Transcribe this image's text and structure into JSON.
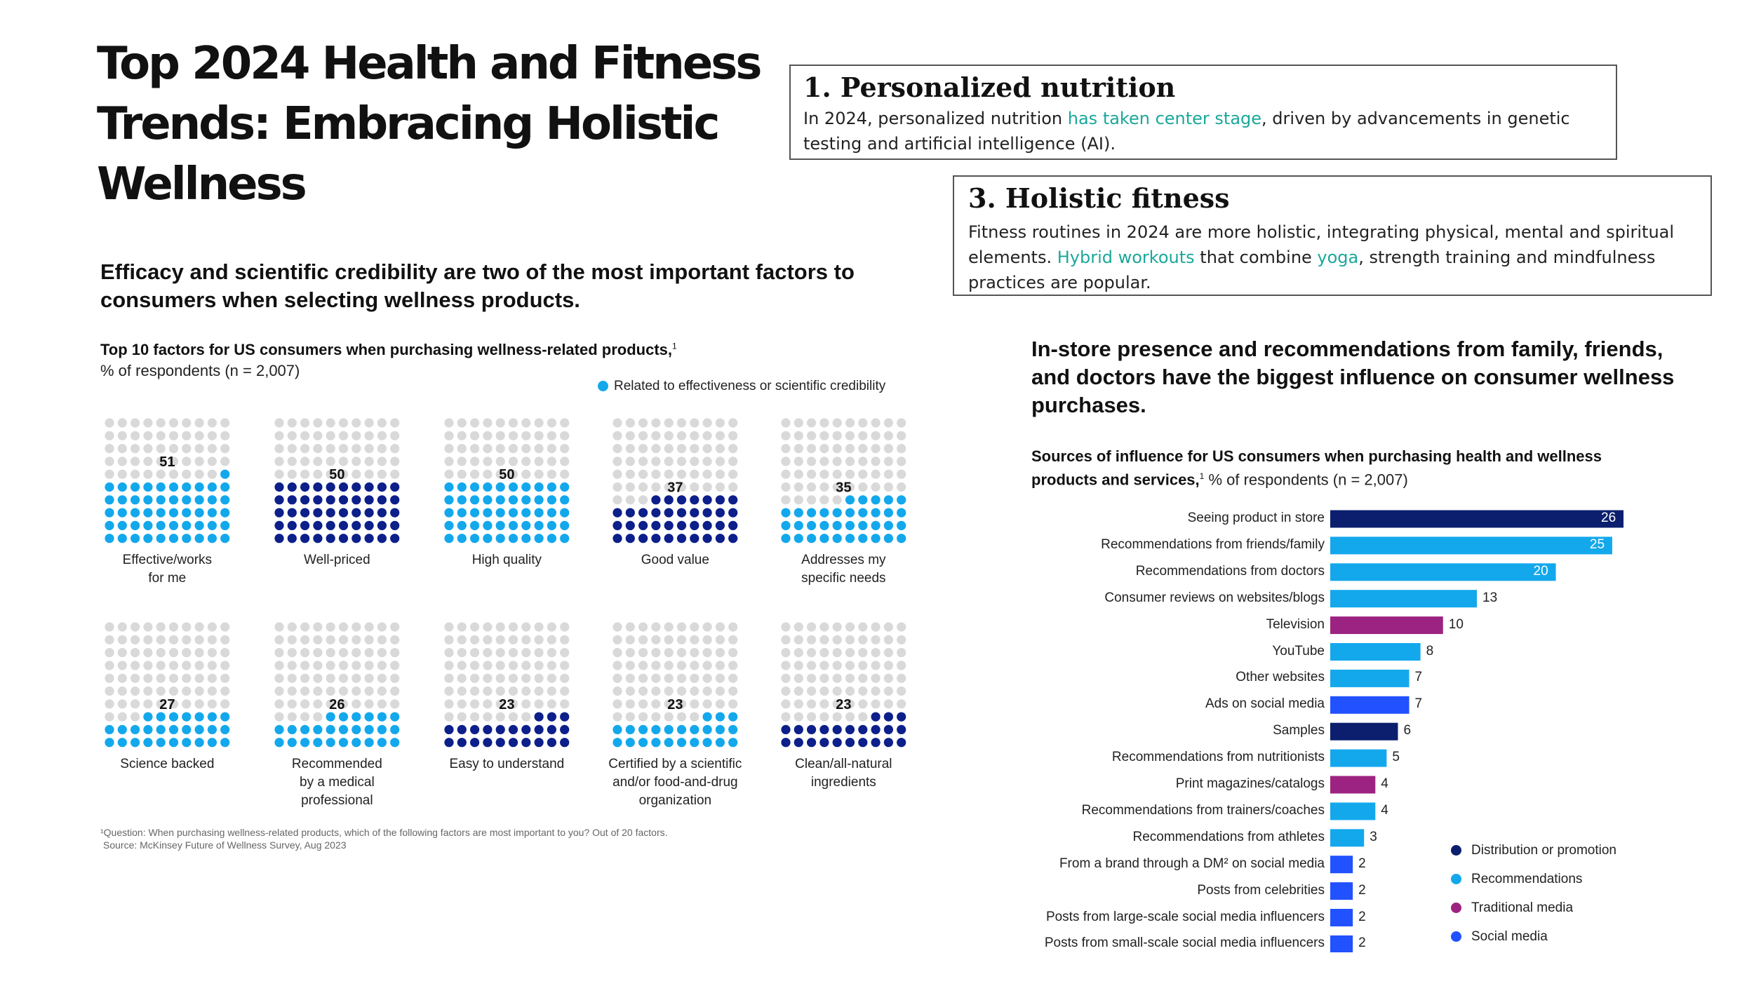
{
  "title": "Top 2024 Health and Fitness Trends: Embracing Holistic Wellness",
  "callout1": {
    "heading": "1. Personalized nutrition",
    "text_before": "In 2024, personalized nutrition ",
    "link": "has taken center stage",
    "text_after": ", driven by advancements in genetic testing and artificial intelligence (AI)."
  },
  "callout3": {
    "heading": "3. Holistic fitness",
    "text1": "Fitness routines in 2024 are more holistic, integrating physical, mental and spiritual elements. ",
    "link1": "Hybrid workouts",
    "text2": " that combine ",
    "link2": "yoga",
    "text3": ", strength training and mindfulness practices are popular."
  },
  "left": {
    "headline": "Efficacy and scientific credibility are two of the most important factors to consumers when selecting wellness products.",
    "subtitle_bold": "Top 10 factors for US consumers when purchasing wellness-related products,",
    "subtitle_sup": "1",
    "subtitle_rest": "% of respondents (n = 2,007)",
    "legend": "Related to effectiveness or scientific credibility",
    "footnote1": "¹Question: When purchasing wellness-related products, which of the following factors are most important to you? Out of 20 factors.",
    "footnote2": "Source: McKinsey Future of Wellness Survey, Aug 2023"
  },
  "right": {
    "headline": "In-store presence and recommendations from family, friends, and doctors have the biggest influence on consumer wellness purchases.",
    "subtitle_bold": "Sources of influence for US consumers when purchasing health and wellness products and services,",
    "subtitle_sup": "1",
    "subtitle_rest": " % of respondents (n = 2,007)",
    "legend": [
      "Distribution or promotion",
      "Recommendations",
      "Traditional media",
      "Social media"
    ]
  },
  "colors": {
    "light_blue": "#13a8ec",
    "navy": "#0c1f8a",
    "dark_navy": "#0b1f6e",
    "magenta": "#9c2381",
    "bright_blue": "#2251ff",
    "grey_dot": "#d9d9d9"
  },
  "chart_data": [
    {
      "type": "waffle",
      "title": "Top 10 factors for US consumers when purchasing wellness-related products",
      "unit": "% of respondents",
      "grid": "10x10",
      "categories": [
        "Effective/works for me",
        "Well-priced",
        "High quality",
        "Good value",
        "Addresses my specific needs",
        "Science backed",
        "Recommended by a medical professional",
        "Easy to understand",
        "Certified by a scientific and/or food-and-drug organization",
        "Clean/all-natural ingredients"
      ],
      "labels": [
        [
          "Effective/works",
          "for me"
        ],
        [
          "Well-priced"
        ],
        [
          "High quality"
        ],
        [
          "Good value"
        ],
        [
          "Addresses my",
          "specific needs"
        ],
        [
          "Science backed"
        ],
        [
          "Recommended",
          "by a medical",
          "professional"
        ],
        [
          "Easy to understand"
        ],
        [
          "Certified by a scientific",
          "and/or food-and-drug",
          "organization"
        ],
        [
          "Clean/all-natural",
          "ingredients"
        ]
      ],
      "values": [
        51,
        50,
        50,
        37,
        35,
        27,
        26,
        23,
        23,
        23
      ],
      "related_to_effectiveness": [
        true,
        false,
        true,
        false,
        true,
        true,
        true,
        false,
        true,
        false
      ]
    },
    {
      "type": "bar",
      "orientation": "horizontal",
      "title": "Sources of influence for US consumers when purchasing health and wellness products and services",
      "unit": "% of respondents",
      "categories": [
        "Seeing product in store",
        "Recommendations from friends/family",
        "Recommendations from doctors",
        "Consumer reviews on websites/blogs",
        "Television",
        "YouTube",
        "Other websites",
        "Ads on social media",
        "Samples",
        "Recommendations from nutritionists",
        "Print magazines/catalogs",
        "Recommendations from trainers/coaches",
        "Recommendations from athletes",
        "From a brand through a DM² on social media",
        "Posts from celebrities",
        "Posts from large-scale social media influencers",
        "Posts from small-scale social media influencers"
      ],
      "values": [
        26,
        25,
        20,
        13,
        10,
        8,
        7,
        7,
        6,
        5,
        4,
        4,
        3,
        2,
        2,
        2,
        2
      ],
      "groups": [
        "Distribution or promotion",
        "Recommendations",
        "Recommendations",
        "Recommendations",
        "Traditional media",
        "Recommendations",
        "Recommendations",
        "Social media",
        "Distribution or promotion",
        "Recommendations",
        "Traditional media",
        "Recommendations",
        "Recommendations",
        "Social media",
        "Social media",
        "Social media",
        "Social media"
      ],
      "xlim": [
        0,
        26
      ]
    }
  ]
}
